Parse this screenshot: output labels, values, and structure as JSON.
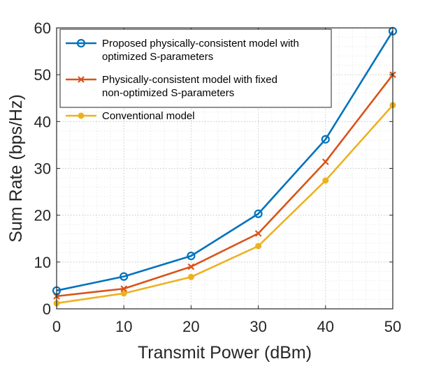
{
  "chart_data": {
    "type": "line",
    "title": "",
    "xlabel": "Transmit Power (dBm)",
    "ylabel": "Sum Rate (bps/Hz)",
    "xlim": [
      0,
      50
    ],
    "ylim": [
      0,
      60
    ],
    "xticks": [
      0,
      10,
      20,
      30,
      40,
      50
    ],
    "yticks": [
      0,
      10,
      20,
      30,
      40,
      50,
      60
    ],
    "grid": "major and minor, dotted",
    "legend_position": "top-left",
    "x": [
      0,
      10,
      20,
      30,
      40,
      50
    ],
    "series": [
      {
        "name": "Proposed physically-consistent model with optimized S-parameters",
        "legend_lines": [
          "Proposed physically-consistent model with",
          "optimized S-parameters"
        ],
        "color": "#0072BD",
        "marker": "circle",
        "values": [
          3.9,
          6.9,
          11.3,
          20.3,
          36.2,
          59.3
        ]
      },
      {
        "name": "Physically-consistent model with fixed non-optimized S-parameters",
        "legend_lines": [
          "Physically-consistent model with fixed",
          "non-optimized S-parameters"
        ],
        "color": "#D95319",
        "marker": "x",
        "values": [
          2.7,
          4.3,
          9.0,
          16.1,
          31.4,
          50.0
        ]
      },
      {
        "name": "Conventional model",
        "legend_lines": [
          "Conventional model"
        ],
        "color": "#EDB120",
        "marker": "dot",
        "values": [
          1.2,
          3.3,
          6.8,
          13.4,
          27.4,
          43.5
        ]
      }
    ]
  }
}
